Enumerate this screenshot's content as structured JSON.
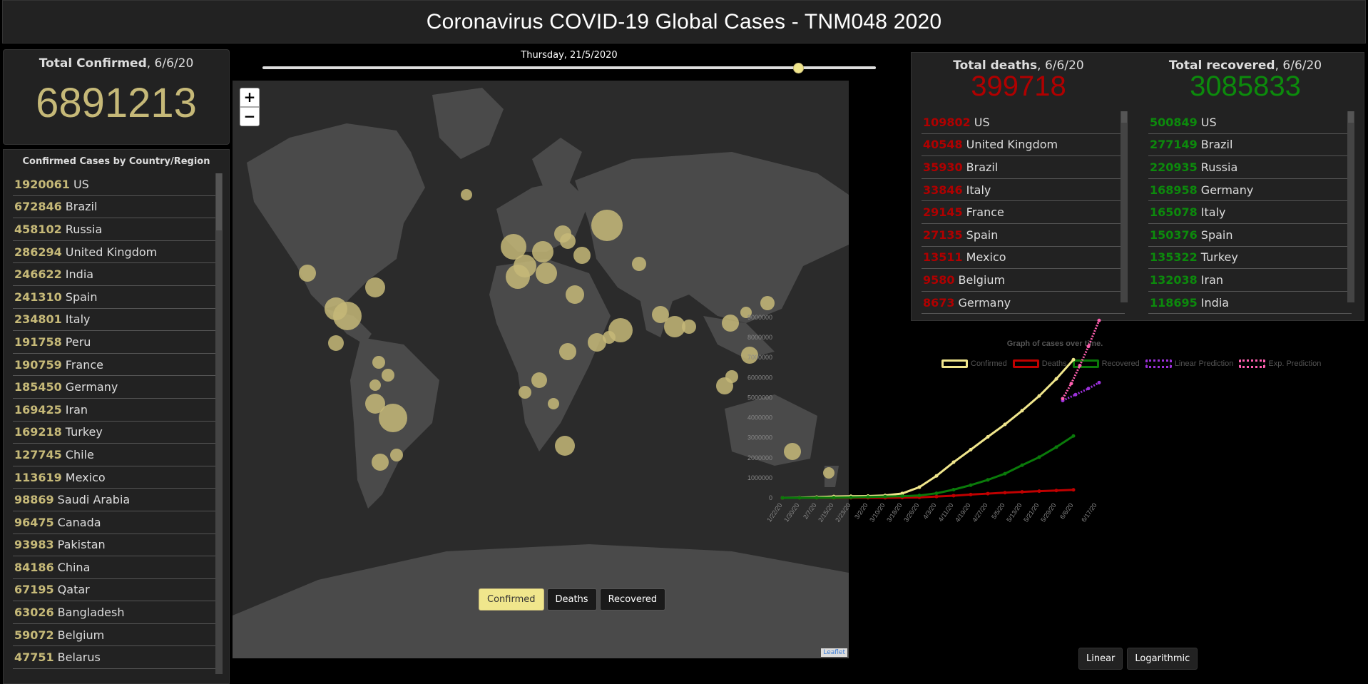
{
  "header": {
    "title": "Coronavirus COVID-19 Global Cases - TNM048 2020"
  },
  "total_confirmed": {
    "label": "Total Confirmed",
    "date": ", 6/6/20",
    "value": "6891213"
  },
  "country_panel": {
    "title": "Confirmed Cases by Country/Region",
    "rows": [
      {
        "num": "1920061",
        "name": "US"
      },
      {
        "num": "672846",
        "name": "Brazil"
      },
      {
        "num": "458102",
        "name": "Russia"
      },
      {
        "num": "286294",
        "name": "United Kingdom"
      },
      {
        "num": "246622",
        "name": "India"
      },
      {
        "num": "241310",
        "name": "Spain"
      },
      {
        "num": "234801",
        "name": "Italy"
      },
      {
        "num": "191758",
        "name": "Peru"
      },
      {
        "num": "190759",
        "name": "France"
      },
      {
        "num": "185450",
        "name": "Germany"
      },
      {
        "num": "169425",
        "name": "Iran"
      },
      {
        "num": "169218",
        "name": "Turkey"
      },
      {
        "num": "127745",
        "name": "Chile"
      },
      {
        "num": "113619",
        "name": "Mexico"
      },
      {
        "num": "98869",
        "name": "Saudi Arabia"
      },
      {
        "num": "96475",
        "name": "Canada"
      },
      {
        "num": "93983",
        "name": "Pakistan"
      },
      {
        "num": "84186",
        "name": "China"
      },
      {
        "num": "67195",
        "name": "Qatar"
      },
      {
        "num": "63026",
        "name": "Bangladesh"
      },
      {
        "num": "59072",
        "name": "Belgium"
      },
      {
        "num": "47751",
        "name": "Belarus"
      }
    ]
  },
  "slider": {
    "date": "Thursday, 21/5/2020",
    "position": 0.873
  },
  "map": {
    "zoom_in": "+",
    "zoom_out": "−",
    "buttons": {
      "confirmed": "Confirmed",
      "deaths": "Deaths",
      "recovered": "Recovered"
    },
    "attribution": "Leaflet"
  },
  "deaths": {
    "label": "Total deaths",
    "date": ", 6/6/20",
    "value": "399718",
    "color": "#b00000",
    "rows": [
      {
        "num": "109802",
        "name": "US"
      },
      {
        "num": "40548",
        "name": "United Kingdom"
      },
      {
        "num": "35930",
        "name": "Brazil"
      },
      {
        "num": "33846",
        "name": "Italy"
      },
      {
        "num": "29145",
        "name": "France"
      },
      {
        "num": "27135",
        "name": "Spain"
      },
      {
        "num": "13511",
        "name": "Mexico"
      },
      {
        "num": "9580",
        "name": "Belgium"
      },
      {
        "num": "8673",
        "name": "Germany"
      }
    ]
  },
  "recovered": {
    "label": "Total recovered",
    "date": ", 6/6/20",
    "value": "3085833",
    "color": "#0c8a0c",
    "rows": [
      {
        "num": "500849",
        "name": "US"
      },
      {
        "num": "277149",
        "name": "Brazil"
      },
      {
        "num": "220935",
        "name": "Russia"
      },
      {
        "num": "168958",
        "name": "Germany"
      },
      {
        "num": "165078",
        "name": "Italy"
      },
      {
        "num": "150376",
        "name": "Spain"
      },
      {
        "num": "135322",
        "name": "Turkey"
      },
      {
        "num": "132038",
        "name": "Iran"
      },
      {
        "num": "118695",
        "name": "India"
      }
    ]
  },
  "chart_data": {
    "type": "line",
    "title": "Graph of cases over time.",
    "xlabel": "",
    "ylabel": "",
    "ylim": [
      0,
      9000000
    ],
    "y_ticks": [
      "0",
      "1000000",
      "2000000",
      "3000000",
      "4000000",
      "5000000",
      "6000000",
      "7000000",
      "8000000",
      "9000000"
    ],
    "x_ticks": [
      "1/22/20",
      "1/30/20",
      "2/7/20",
      "2/15/20",
      "2/23/20",
      "3/2/20",
      "3/10/20",
      "3/18/20",
      "3/26/20",
      "4/3/20",
      "4/11/20",
      "4/19/20",
      "4/27/20",
      "5/5/20",
      "5/13/20",
      "5/21/20",
      "5/29/20",
      "6/6/20",
      "6/17/20"
    ],
    "grid": false,
    "legend_position": "top",
    "x_days": [
      0,
      8,
      16,
      24,
      32,
      40,
      48,
      56,
      64,
      72,
      80,
      88,
      96,
      104,
      112,
      120,
      128,
      136
    ],
    "series": [
      {
        "name": "Confirmed",
        "color": "#f0e68c",
        "values": [
          555,
          9800,
          34400,
          67100,
          79300,
          90300,
          118900,
          218800,
          531800,
          1095900,
          1777500,
          2401300,
          3041800,
          3662700,
          4347000,
          5082000,
          5933500,
          6891213
        ]
      },
      {
        "name": "Deaths",
        "color": "#c00000",
        "values": [
          17,
          213,
          724,
          1526,
          2469,
          3085,
          4262,
          8958,
          24067,
          64606,
          108503,
          165069,
          211164,
          257222,
          297220,
          332000,
          365000,
          399718
        ]
      },
      {
        "name": "Recovered",
        "color": "#0a7a0a",
        "values": [
          28,
          222,
          2616,
          9395,
          23384,
          45602,
          64404,
          83207,
          117900,
          226000,
          409000,
          632000,
          896000,
          1207000,
          1628000,
          2030000,
          2530000,
          3085833
        ]
      },
      {
        "name": "Linear Prediction",
        "color": "#9b30d9",
        "x_days": [
          131,
          137,
          143,
          148
        ],
        "values": [
          4850000,
          5150000,
          5450000,
          5750000
        ]
      },
      {
        "name": "Exp. Prediction",
        "color": "#ff5fb0",
        "x_days": [
          131,
          135,
          139,
          143,
          148
        ],
        "values": [
          4950000,
          5700000,
          6600000,
          7550000,
          8850000
        ]
      }
    ]
  },
  "graph_buttons": {
    "linear": "Linear",
    "log": "Logarithmic"
  }
}
